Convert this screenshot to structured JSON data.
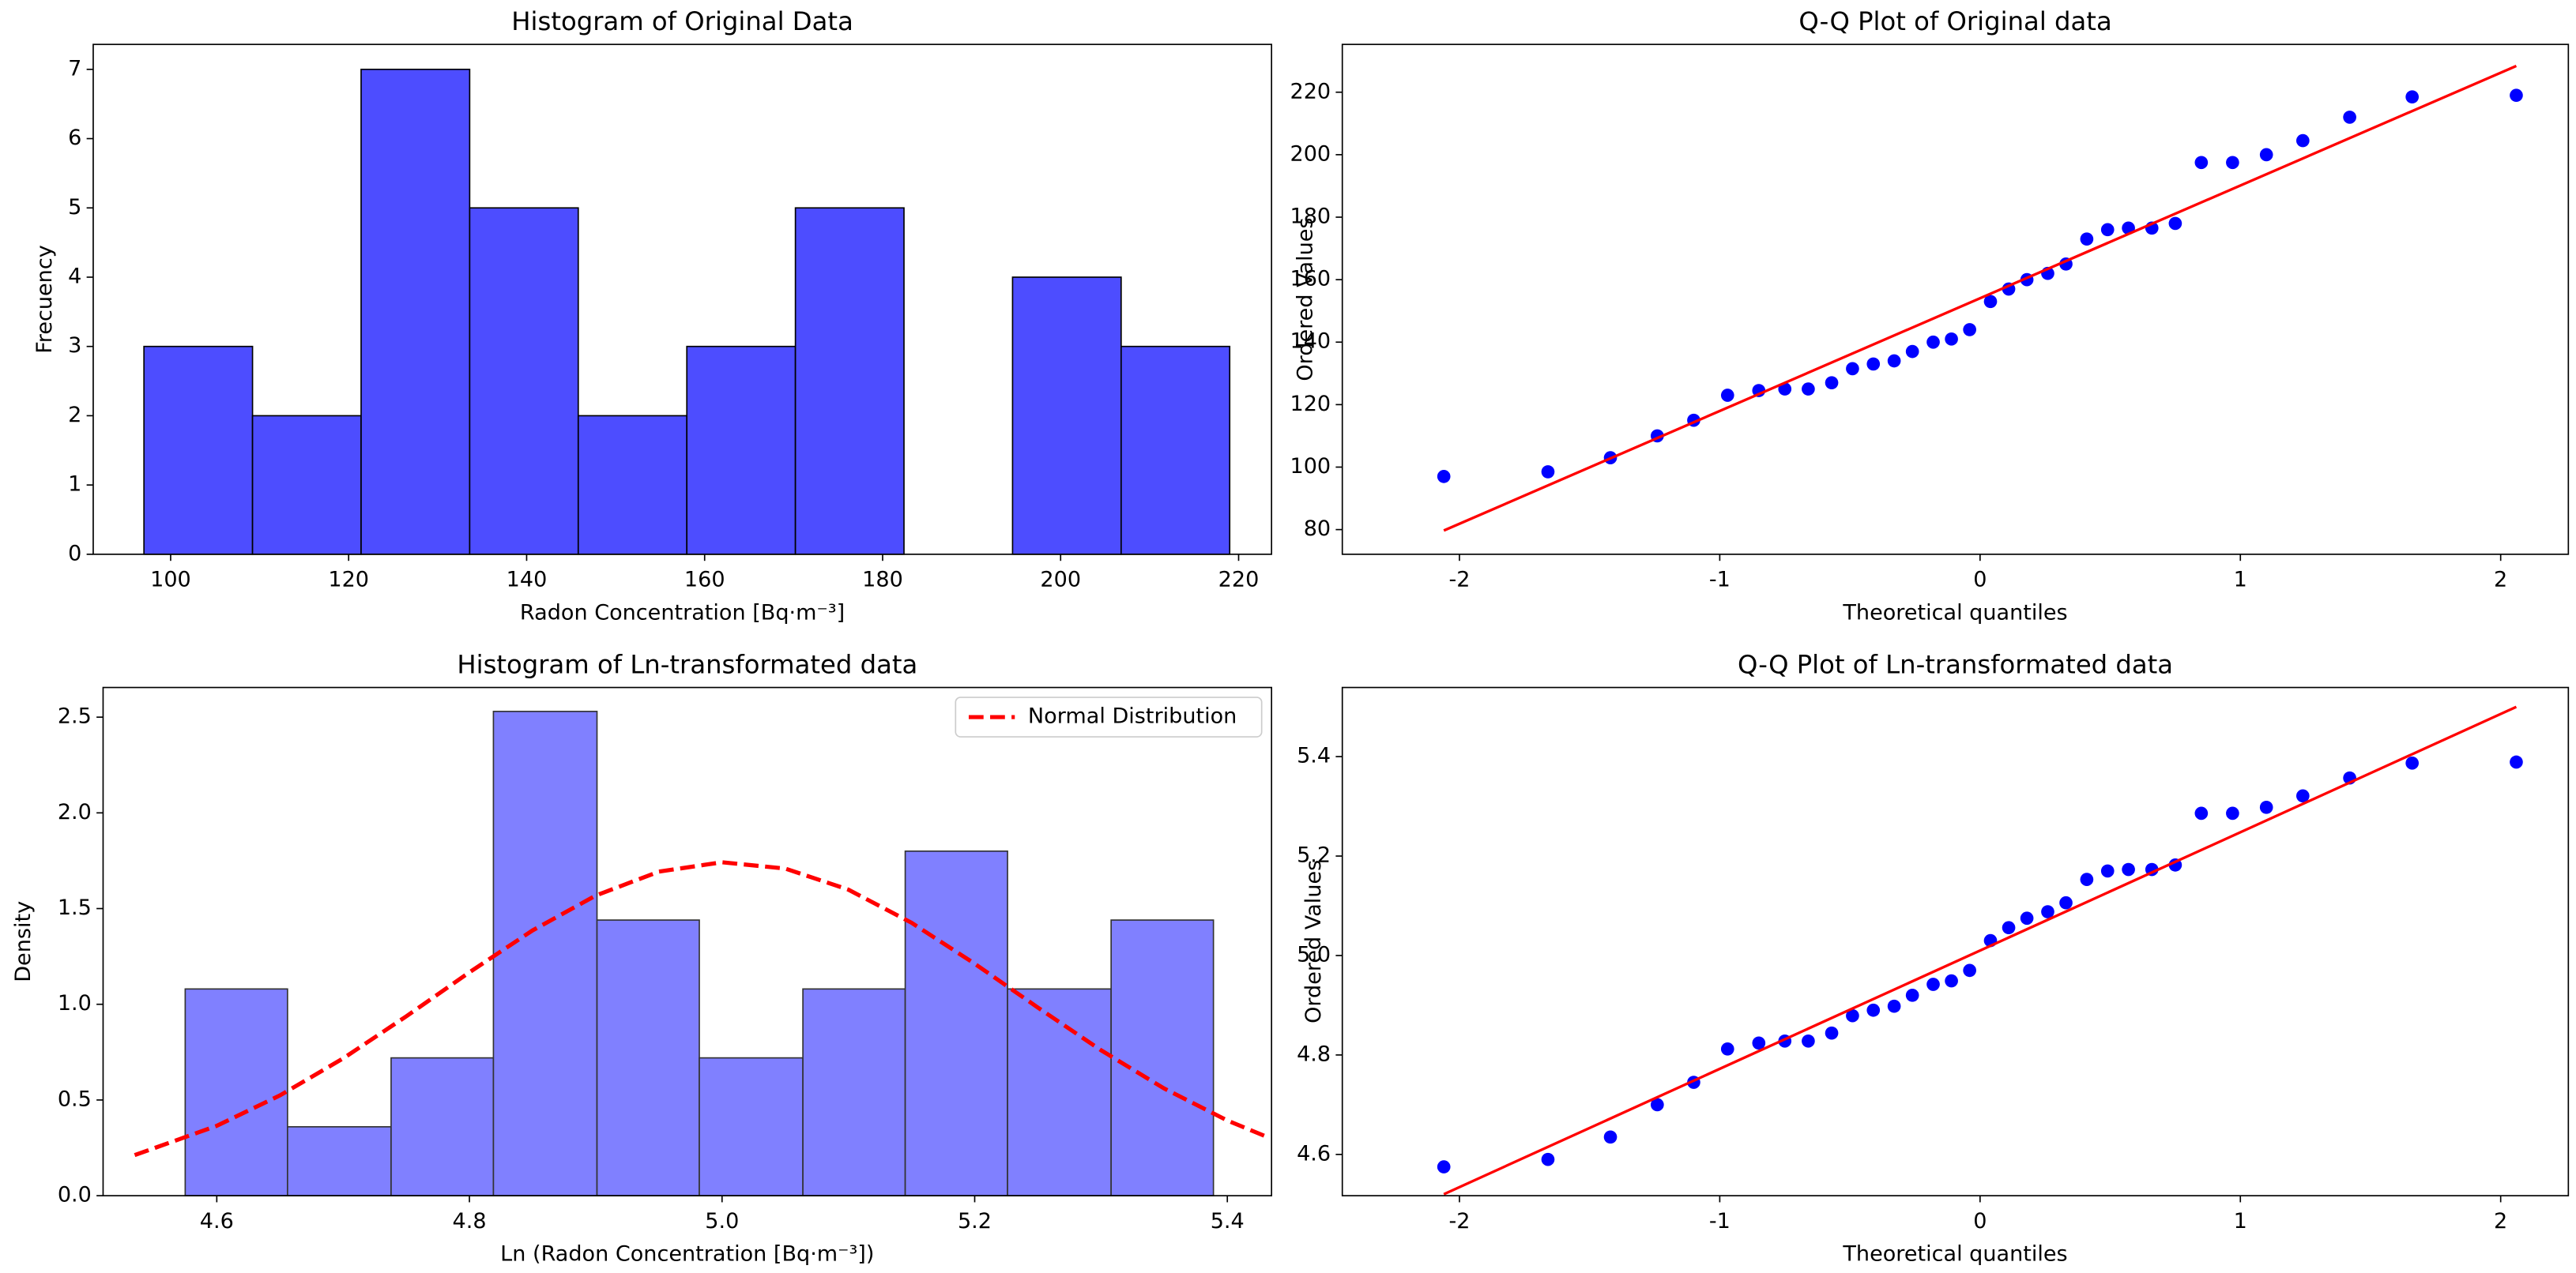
{
  "chart_data": [
    {
      "type": "histogram",
      "title": "Histogram of Original Data",
      "xlabel": "Radon Concentration [Bq·m⁻³]",
      "ylabel": "Frecuency",
      "bins": [
        97.0,
        109.2,
        121.4,
        133.6,
        145.8,
        158.0,
        170.2,
        182.4,
        194.6,
        206.8,
        219.0
      ],
      "values": [
        3,
        2,
        7,
        5,
        2,
        3,
        5,
        0,
        4,
        3
      ],
      "color": "#4d4dff",
      "edgecolor": "#000000",
      "xlim": [
        91.3,
        223.7
      ],
      "ylim": [
        0,
        7.36
      ],
      "xticks": [
        100,
        120,
        140,
        160,
        180,
        200,
        220
      ],
      "yticks": [
        0,
        1,
        2,
        3,
        4,
        5,
        6,
        7
      ]
    },
    {
      "type": "scatter",
      "title": "Q-Q Plot of Original data",
      "xlabel": "Theoretical quantiles",
      "ylabel": "Ordered Values",
      "x": [
        -2.06,
        -1.66,
        -1.42,
        -1.24,
        -1.1,
        -0.97,
        -0.85,
        -0.75,
        -0.66,
        -0.57,
        -0.49,
        -0.41,
        -0.33,
        -0.26,
        -0.18,
        -0.11,
        -0.04,
        0.04,
        0.11,
        0.18,
        0.26,
        0.33,
        0.41,
        0.49,
        0.57,
        0.66,
        0.75,
        0.85,
        0.97,
        1.1,
        1.24,
        1.42,
        1.66,
        2.06
      ],
      "series": [
        {
          "color": "#0000ff",
          "values": [
            97,
            98.5,
            103,
            110,
            115,
            123,
            124.5,
            125,
            125,
            127,
            131.5,
            133,
            134,
            137,
            140,
            141,
            144,
            153,
            157,
            160,
            162,
            165,
            173,
            176,
            176.5,
            176.5,
            178,
            197.5,
            197.5,
            200,
            204.5,
            212,
            218.5,
            219
          ]
        }
      ],
      "fit": {
        "color": "#ff0000",
        "x": [
          -2.06,
          2.06
        ],
        "values": [
          79.7,
          228.4
        ]
      },
      "xlim": [
        -2.45,
        2.26
      ],
      "ylim": [
        72.1,
        235.3
      ],
      "xticks": [
        -2,
        -1,
        0,
        1,
        2
      ],
      "yticks": [
        80,
        100,
        120,
        140,
        160,
        180,
        200,
        220
      ]
    },
    {
      "type": "histogram",
      "title": "Histogram of Ln-transformated data",
      "xlabel": "Ln (Radon Concentration [Bq·m⁻³])",
      "ylabel": "Density",
      "bins": [
        4.575,
        4.656,
        4.738,
        4.819,
        4.901,
        4.982,
        5.064,
        5.145,
        5.226,
        5.308,
        5.389
      ],
      "values": [
        1.08,
        0.36,
        0.72,
        2.53,
        1.44,
        0.72,
        1.08,
        1.8,
        1.08,
        1.44
      ],
      "color": "#8080ff",
      "edgecolor": "#333333",
      "series": [
        {
          "name": "Normal Distribution",
          "color": "#ff0000",
          "dashed": true,
          "x": [
            4.535,
            4.6,
            4.65,
            4.7,
            4.75,
            4.8,
            4.85,
            4.9,
            4.95,
            5.0,
            5.05,
            5.1,
            5.15,
            5.2,
            5.25,
            5.3,
            5.35,
            5.4,
            5.43
          ],
          "values": [
            0.212,
            0.365,
            0.524,
            0.717,
            0.937,
            1.167,
            1.386,
            1.568,
            1.693,
            1.742,
            1.709,
            1.599,
            1.426,
            1.212,
            0.983,
            0.76,
            0.56,
            0.393,
            0.311
          ]
        }
      ],
      "legend": "upper right",
      "xlim": [
        4.51,
        5.435
      ],
      "ylim": [
        0,
        2.655
      ],
      "xticks": [
        4.6,
        4.8,
        {
          "value": 5,
          "label": "5.0"
        },
        5.2,
        5.4
      ],
      "yticks": [
        {
          "value": 0,
          "label": "0.0"
        },
        0.5,
        {
          "value": 1,
          "label": "1.0"
        },
        1.5,
        {
          "value": 2,
          "label": "2.0"
        },
        2.5
      ]
    },
    {
      "type": "scatter",
      "title": "Q-Q Plot of Ln-transformated data",
      "xlabel": "Theoretical quantiles",
      "ylabel": "Ordered Values",
      "x": [
        -2.06,
        -1.66,
        -1.42,
        -1.24,
        -1.1,
        -0.97,
        -0.85,
        -0.75,
        -0.66,
        -0.57,
        -0.49,
        -0.41,
        -0.33,
        -0.26,
        -0.18,
        -0.11,
        -0.04,
        0.04,
        0.11,
        0.18,
        0.26,
        0.33,
        0.41,
        0.49,
        0.57,
        0.66,
        0.75,
        0.85,
        0.97,
        1.1,
        1.24,
        1.42,
        1.66,
        2.06
      ],
      "series": [
        {
          "color": "#0000ff",
          "values": [
            4.575,
            4.59,
            4.635,
            4.7,
            4.745,
            4.812,
            4.824,
            4.828,
            4.828,
            4.844,
            4.879,
            4.89,
            4.898,
            4.92,
            4.942,
            4.949,
            4.97,
            5.03,
            5.056,
            5.075,
            5.088,
            5.106,
            5.153,
            5.17,
            5.173,
            5.173,
            5.182,
            5.286,
            5.286,
            5.298,
            5.321,
            5.357,
            5.387,
            5.389
          ]
        }
      ],
      "fit": {
        "color": "#ff0000",
        "x": [
          -2.06,
          2.06
        ],
        "values": [
          4.52,
          5.5
        ]
      },
      "xlim": [
        -2.45,
        2.26
      ],
      "ylim": [
        4.517,
        5.539
      ],
      "xticks": [
        -2,
        -1,
        0,
        1,
        2
      ],
      "yticks": [
        4.6,
        4.8,
        {
          "value": 5,
          "label": "5.0"
        },
        5.2,
        5.4
      ]
    }
  ]
}
